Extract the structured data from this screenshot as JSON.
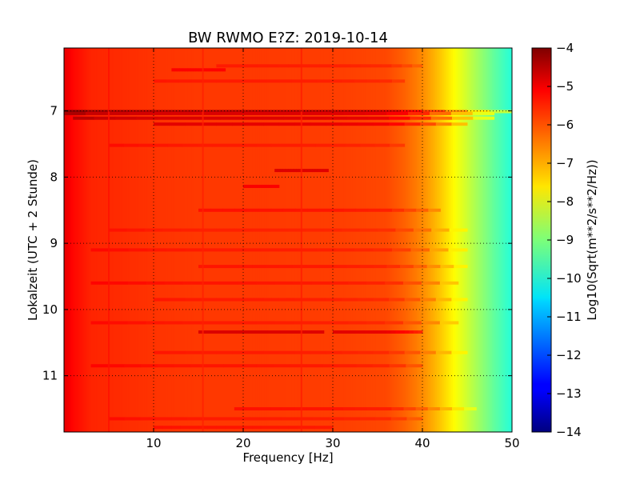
{
  "chart_data": {
    "type": "heatmap",
    "title": "BW RWMO E?Z: 2019-10-14",
    "xlabel": "Frequency [Hz]",
    "ylabel": "Lokalzeit (UTC + 2 Stunde)",
    "xlim": [
      0,
      50
    ],
    "ylim": [
      6.05,
      11.85
    ],
    "y_inverted": true,
    "xticks": [
      10,
      20,
      30,
      40,
      50
    ],
    "yticks": [
      7,
      8,
      9,
      10,
      11
    ],
    "grid": true,
    "colormap": "jet",
    "colorbar": {
      "label": "Log10(Sqrt(m**2/s**2/Hz))",
      "range": [
        -14,
        -4
      ],
      "ticks": [
        -4,
        -5,
        -6,
        -7,
        -8,
        -9,
        -10,
        -11,
        -12,
        -13,
        -14
      ]
    },
    "spectral_profile": {
      "frequency_hz": [
        0,
        1,
        3,
        10,
        15,
        20,
        30,
        36,
        38,
        40,
        42,
        44,
        46,
        48,
        50
      ],
      "log_amplitude": [
        -5.0,
        -5.3,
        -5.6,
        -5.75,
        -5.8,
        -5.8,
        -5.85,
        -5.95,
        -6.2,
        -6.6,
        -7.2,
        -7.9,
        -8.6,
        -9.3,
        -9.9
      ]
    },
    "horizontal_bands": [
      {
        "time": 6.32,
        "f_start": 17,
        "f_end": 40,
        "delta": 0.3
      },
      {
        "time": 6.38,
        "f_start": 12,
        "f_end": 18,
        "delta": 0.55
      },
      {
        "time": 6.55,
        "f_start": 10,
        "f_end": 38,
        "delta": 0.3
      },
      {
        "time": 7.01,
        "f_start": 0,
        "f_end": 50,
        "delta": 1.2
      },
      {
        "time": 7.04,
        "f_start": 0,
        "f_end": 48,
        "delta": 0.9
      },
      {
        "time": 7.11,
        "f_start": 1,
        "f_end": 48,
        "delta": 0.9
      },
      {
        "time": 7.2,
        "f_start": 10,
        "f_end": 45,
        "delta": 0.8
      },
      {
        "time": 7.52,
        "f_start": 5,
        "f_end": 38,
        "delta": 0.3
      },
      {
        "time": 7.9,
        "f_start": 23.5,
        "f_end": 29.5,
        "delta": 0.9
      },
      {
        "time": 8.14,
        "f_start": 20,
        "f_end": 24,
        "delta": 0.6
      },
      {
        "time": 8.5,
        "f_start": 15,
        "f_end": 42,
        "delta": 0.4
      },
      {
        "time": 8.8,
        "f_start": 5,
        "f_end": 45,
        "delta": 0.25
      },
      {
        "time": 9.1,
        "f_start": 3,
        "f_end": 45,
        "delta": 0.3
      },
      {
        "time": 9.35,
        "f_start": 15,
        "f_end": 45,
        "delta": 0.35
      },
      {
        "time": 9.6,
        "f_start": 3,
        "f_end": 44,
        "delta": 0.35
      },
      {
        "time": 9.85,
        "f_start": 10,
        "f_end": 45,
        "delta": 0.3
      },
      {
        "time": 10.2,
        "f_start": 3,
        "f_end": 44,
        "delta": 0.3
      },
      {
        "time": 10.34,
        "f_start": 15,
        "f_end": 29,
        "delta": 0.9
      },
      {
        "time": 10.34,
        "f_start": 30,
        "f_end": 40,
        "delta": 0.9
      },
      {
        "time": 10.65,
        "f_start": 10,
        "f_end": 45,
        "delta": 0.3
      },
      {
        "time": 10.85,
        "f_start": 3,
        "f_end": 40,
        "delta": 0.35
      },
      {
        "time": 11.5,
        "f_start": 19,
        "f_end": 46,
        "delta": 0.4
      },
      {
        "time": 11.65,
        "f_start": 5,
        "f_end": 40,
        "delta": 0.3
      },
      {
        "time": 11.78,
        "f_start": 10,
        "f_end": 30,
        "delta": 0.35
      }
    ],
    "vertical_lines": [
      {
        "frequency": 5.0,
        "delta": 0.25
      },
      {
        "frequency": 15.5,
        "delta": 0.25
      },
      {
        "frequency": 26.5,
        "delta": 0.3
      }
    ]
  }
}
